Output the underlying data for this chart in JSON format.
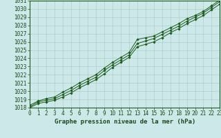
{
  "xlabel": "Graphe pression niveau de la mer (hPa)",
  "x": [
    0,
    1,
    2,
    3,
    4,
    5,
    6,
    7,
    8,
    9,
    10,
    11,
    12,
    13,
    14,
    15,
    16,
    17,
    18,
    19,
    20,
    21,
    22,
    23
  ],
  "y_line1": [
    1018.3,
    1018.8,
    1019.1,
    1019.3,
    1019.9,
    1020.4,
    1021.0,
    1021.5,
    1022.0,
    1022.8,
    1023.5,
    1024.1,
    1024.7,
    1026.3,
    1026.5,
    1026.7,
    1027.2,
    1027.7,
    1028.2,
    1028.8,
    1029.2,
    1029.7,
    1030.4,
    1031.1
  ],
  "y_line2": [
    1018.1,
    1018.7,
    1018.9,
    1019.1,
    1019.6,
    1020.1,
    1020.7,
    1021.2,
    1021.7,
    1022.5,
    1023.2,
    1023.8,
    1024.4,
    1025.8,
    1026.1,
    1026.4,
    1026.9,
    1027.4,
    1027.9,
    1028.5,
    1029.0,
    1029.5,
    1030.2,
    1030.9
  ],
  "y_line3": [
    1018.0,
    1018.5,
    1018.7,
    1018.9,
    1019.3,
    1019.8,
    1020.4,
    1020.9,
    1021.4,
    1022.1,
    1022.9,
    1023.5,
    1024.1,
    1025.4,
    1025.7,
    1026.0,
    1026.5,
    1027.1,
    1027.6,
    1028.2,
    1028.7,
    1029.2,
    1029.9,
    1030.6
  ],
  "ylim_min": 1018,
  "ylim_max": 1031,
  "ytick_min": 1018,
  "ytick_max": 1031,
  "bg_color": "#cce8e8",
  "grid_color": "#aac8c8",
  "line_color": "#1a5c1a",
  "marker_color": "#1a5c1a",
  "tick_label_color": "#1a4a1a",
  "xlabel_color": "#1a4a1a",
  "font_size_ticks": 5.5,
  "font_size_xlabel": 6.5
}
